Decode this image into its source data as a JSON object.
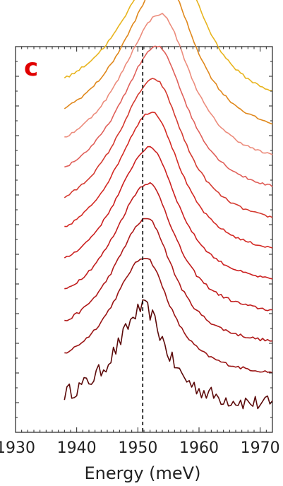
{
  "chart_data": {
    "type": "line",
    "panel_label": "c",
    "xlabel": "Energy (meV)",
    "ylabel": "",
    "xlim": [
      1930,
      1972
    ],
    "ylim": [
      0,
      13
    ],
    "x_ticks": [
      1930,
      1940,
      1950,
      1960,
      1970
    ],
    "x_tick_labels": [
      "1930",
      "1940",
      "1950",
      "1960",
      "1970"
    ],
    "reference_line": {
      "x": 1950.8,
      "style": "dashed",
      "color": "#000000"
    },
    "grid": false,
    "legend": "none",
    "series_count": 11,
    "series": [
      {
        "color": "#5c0a0a",
        "offset": 0,
        "peak_x": 1951.0,
        "amplitude": 3.4,
        "width_left": 5.5,
        "width_right": 4.4,
        "noise": 0.28
      },
      {
        "color": "#9a1414",
        "offset": 1,
        "peak_x": 1951.2,
        "amplitude": 4.1,
        "width_left": 6.8,
        "width_right": 5.0,
        "noise": 0.05
      },
      {
        "color": "#b01a1a",
        "offset": 2,
        "peak_x": 1951.5,
        "amplitude": 4.4,
        "width_left": 7.0,
        "width_right": 5.3,
        "noise": 0.05
      },
      {
        "color": "#c21e1e",
        "offset": 3,
        "peak_x": 1951.7,
        "amplitude": 4.6,
        "width_left": 7.2,
        "width_right": 5.5,
        "noise": 0.05
      },
      {
        "color": "#cc2020",
        "offset": 4,
        "peak_x": 1952.0,
        "amplitude": 4.8,
        "width_left": 7.4,
        "width_right": 5.7,
        "noise": 0.04
      },
      {
        "color": "#d42a24",
        "offset": 5,
        "peak_x": 1952.3,
        "amplitude": 5.0,
        "width_left": 7.6,
        "width_right": 5.9,
        "noise": 0.04
      },
      {
        "color": "#d43a30",
        "offset": 6,
        "peak_x": 1952.7,
        "amplitude": 5.1,
        "width_left": 7.8,
        "width_right": 6.0,
        "noise": 0.04
      },
      {
        "color": "#e0605a",
        "offset": 7,
        "peak_x": 1953.2,
        "amplitude": 5.2,
        "width_left": 8.0,
        "width_right": 6.1,
        "noise": 0.04
      },
      {
        "color": "#ec8c7c",
        "offset": 8,
        "peak_x": 1953.7,
        "amplitude": 5.3,
        "width_left": 8.2,
        "width_right": 6.2,
        "noise": 0.04
      },
      {
        "color": "#e0881c",
        "offset": 9,
        "peak_x": 1954.3,
        "amplitude": 5.4,
        "width_left": 8.4,
        "width_right": 6.3,
        "noise": 0.04
      },
      {
        "color": "#e8b41e",
        "offset": 10,
        "peak_x": 1955.3,
        "amplitude": 5.5,
        "width_left": 8.8,
        "width_right": 6.4,
        "noise": 0.04
      }
    ]
  }
}
